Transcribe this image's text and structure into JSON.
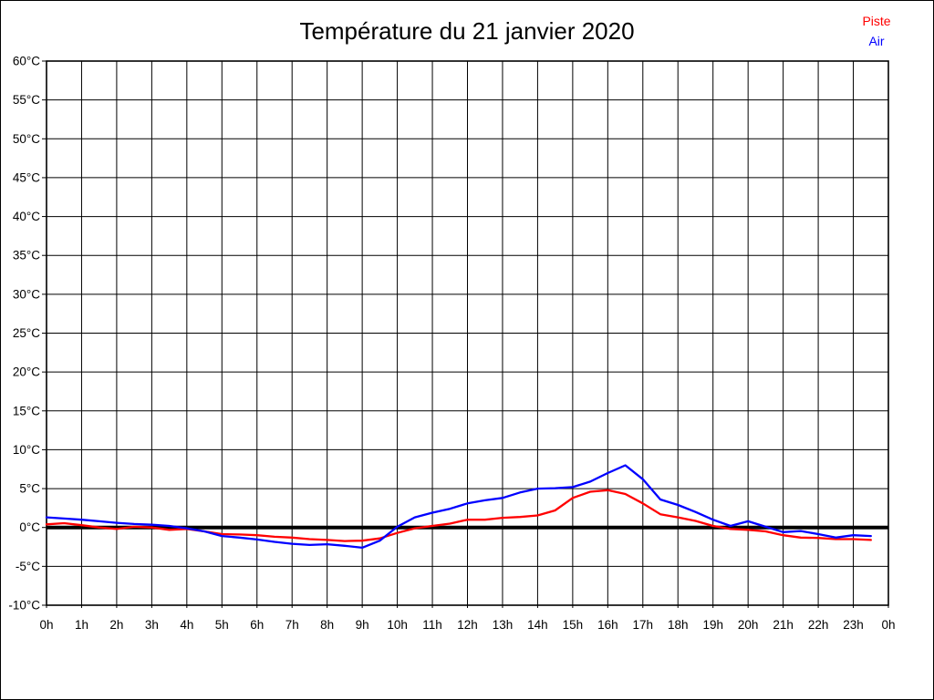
{
  "title": "Température du 21 janvier 2020",
  "legend": [
    {
      "label": "Piste",
      "color": "#ff0000"
    },
    {
      "label": "Air",
      "color": "#0000ff"
    }
  ],
  "chart_data": {
    "type": "line",
    "title": "Température du 21 janvier 2020",
    "xlabel": "",
    "ylabel": "",
    "xlim": [
      0,
      24
    ],
    "ylim": [
      -10,
      60
    ],
    "x_tick_step_hours": 1,
    "y_tick_step_degrees": 5,
    "grid": true,
    "zero_line_emphasized": true,
    "legend_position": "top-right",
    "x_tick_labels": [
      "0h",
      "1h",
      "2h",
      "3h",
      "4h",
      "5h",
      "6h",
      "7h",
      "8h",
      "9h",
      "10h",
      "11h",
      "12h",
      "13h",
      "14h",
      "15h",
      "16h",
      "17h",
      "18h",
      "19h",
      "20h",
      "21h",
      "22h",
      "23h",
      "0h"
    ],
    "y_tick_labels": [
      "60°C",
      "55°C",
      "50°C",
      "45°C",
      "40°C",
      "35°C",
      "30°C",
      "25°C",
      "20°C",
      "15°C",
      "10°C",
      "5°C",
      "0°C",
      "-5°C",
      "-10°C"
    ],
    "x_unit": "hours",
    "y_unit": "°C",
    "x": [
      0,
      0.5,
      1,
      1.5,
      2,
      2.5,
      3,
      3.5,
      4,
      4.5,
      5,
      5.5,
      6,
      6.5,
      7,
      7.5,
      8,
      8.5,
      9,
      9.5,
      10,
      10.5,
      11,
      11.5,
      12,
      12.5,
      13,
      13.5,
      14,
      14.5,
      15,
      15.5,
      16,
      16.5,
      17,
      17.5,
      18,
      18.5,
      19,
      19.5,
      20,
      20.5,
      21,
      21.5,
      22,
      22.5,
      23,
      23.5
    ],
    "series": [
      {
        "name": "Piste",
        "color": "#ff0000",
        "values": [
          0.4,
          0.55,
          0.3,
          0,
          -0.2,
          0.1,
          0,
          -0.3,
          -0.2,
          -0.5,
          -0.85,
          -0.9,
          -1,
          -1.2,
          -1.3,
          -1.5,
          -1.6,
          -1.75,
          -1.7,
          -1.4,
          -0.7,
          -0.1,
          0.2,
          0.5,
          1,
          1,
          1.25,
          1.35,
          1.55,
          2.2,
          3.8,
          4.6,
          4.8,
          4.3,
          3.1,
          1.7,
          1.3,
          0.85,
          0.2,
          -0.2,
          -0.3,
          -0.5,
          -1,
          -1.3,
          -1.35,
          -1.5,
          -1.5,
          -1.6
        ]
      },
      {
        "name": "Air",
        "color": "#0000ff",
        "values": [
          1.3,
          1.15,
          1,
          0.8,
          0.6,
          0.45,
          0.35,
          0.2,
          -0.1,
          -0.5,
          -1.1,
          -1.3,
          -1.55,
          -1.85,
          -2.1,
          -2.25,
          -2.15,
          -2.35,
          -2.6,
          -1.7,
          0.1,
          1.3,
          1.9,
          2.4,
          3.1,
          3.5,
          3.8,
          4.5,
          5,
          5.05,
          5.2,
          5.9,
          7,
          8,
          6.2,
          3.6,
          2.9,
          2,
          1,
          0.2,
          0.8,
          0.1,
          -0.6,
          -0.45,
          -0.85,
          -1.3,
          -1,
          -1.1
        ]
      }
    ]
  }
}
